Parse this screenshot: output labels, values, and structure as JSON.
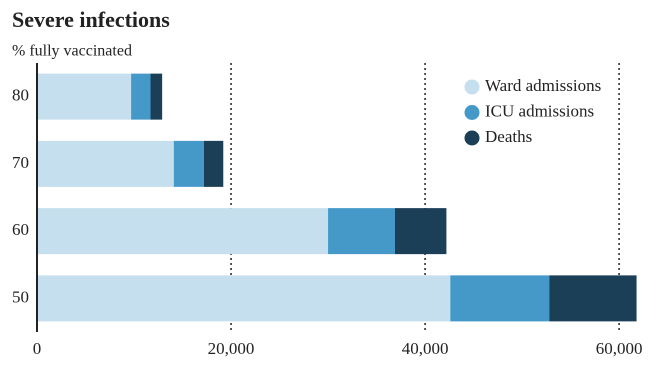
{
  "chart_data": {
    "type": "stacked-barh",
    "title": "Severe infections",
    "y_label": "% fully vaccinated",
    "categories": [
      "80",
      "70",
      "60",
      "50"
    ],
    "series": [
      {
        "name": "Ward admissions",
        "color": "#c5dfee",
        "values": [
          9700,
          14100,
          30000,
          42600
        ]
      },
      {
        "name": "ICU admissions",
        "color": "#4499c9",
        "values": [
          2000,
          3100,
          6900,
          10200
        ]
      },
      {
        "name": "Deaths",
        "color": "#1b3f57",
        "values": [
          1200,
          2000,
          5300,
          9000
        ]
      }
    ],
    "xlim": [
      0,
      62000
    ],
    "xticks": [
      0,
      {
        "value": 20000,
        "label": "20,000"
      },
      {
        "value": 40000,
        "label": "40,000"
      },
      {
        "value": 60000,
        "label": "60,000"
      }
    ],
    "grid": true,
    "legend": "top-right"
  }
}
